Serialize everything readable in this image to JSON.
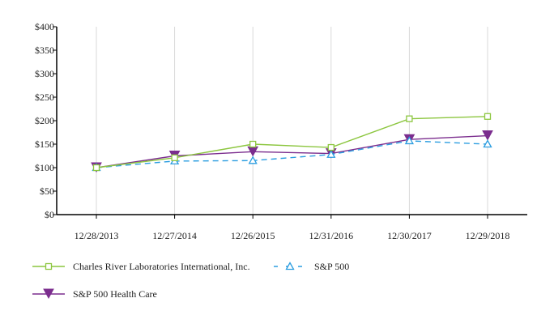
{
  "chart_data": {
    "type": "line",
    "categories": [
      "12/28/2013",
      "12/27/2014",
      "12/26/2015",
      "12/31/2016",
      "12/30/2017",
      "12/29/2018"
    ],
    "ylim": [
      0,
      400
    ],
    "yticks": [
      0,
      50,
      100,
      150,
      200,
      250,
      300,
      350,
      400
    ],
    "ytick_labels": [
      "$0",
      "$50",
      "$100",
      "$150",
      "$200",
      "$250",
      "$300",
      "$350",
      "$400"
    ],
    "grid": "vertical",
    "legend_position": "bottom",
    "series": [
      {
        "name": "Charles River Laboratories International, Inc.",
        "color": "#8cc63f",
        "marker": "square-open",
        "dash": false,
        "values": [
          100,
          121,
          150,
          143,
          204,
          209
        ]
      },
      {
        "name": "S&P 500",
        "color": "#2b9de0",
        "marker": "triangle-up-open",
        "dash": true,
        "values": [
          100,
          114,
          115,
          128,
          157,
          150
        ]
      },
      {
        "name": "S&P 500 Health Care",
        "color": "#7b2d8e",
        "marker": "triangle-down-filled",
        "dash": false,
        "values": [
          100,
          125,
          134,
          130,
          160,
          168
        ]
      }
    ]
  }
}
